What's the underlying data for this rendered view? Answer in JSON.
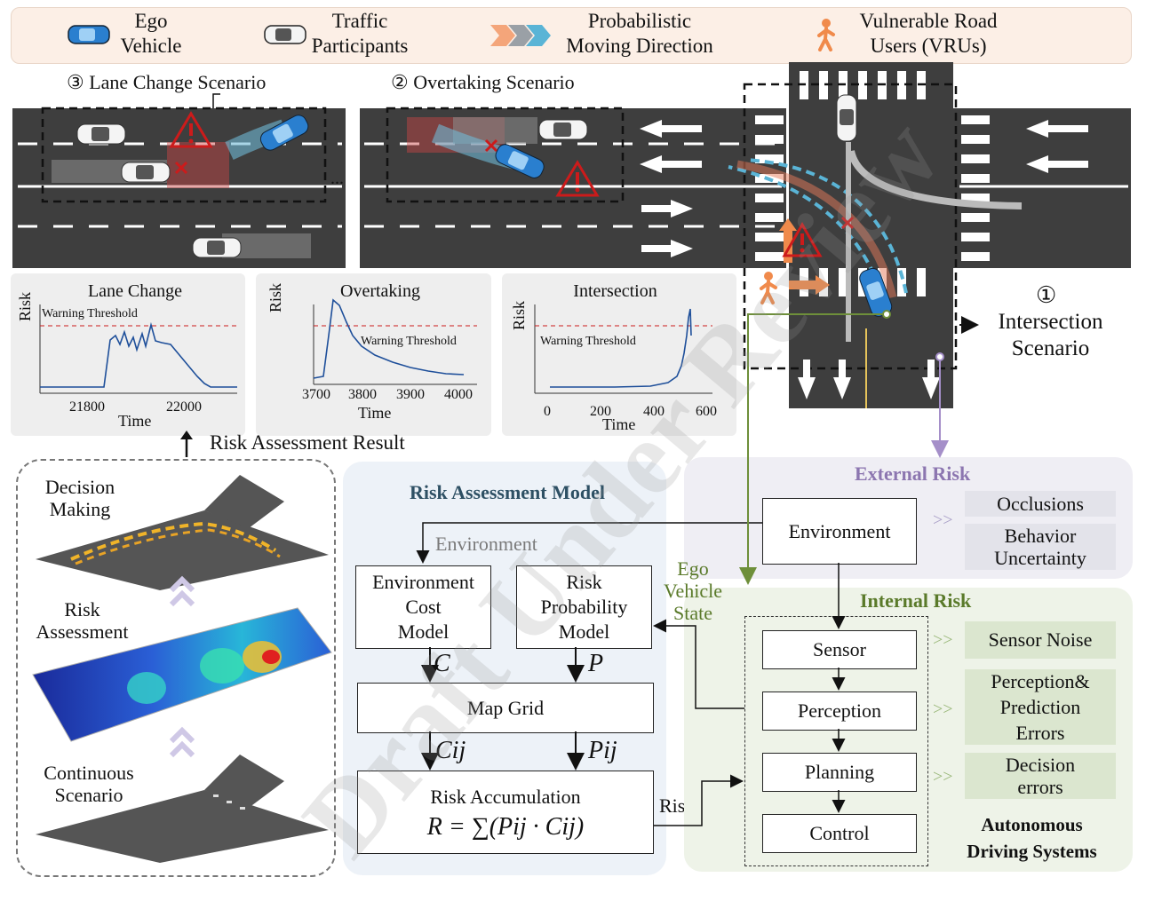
{
  "legend": {
    "ego": "Ego\nVehicle",
    "traffic": "Traffic\nParticipants",
    "direction": "Probabilistic\nMoving Direction",
    "vru": "Vulnerable Road\nUsers (VRUs)"
  },
  "scenarios": {
    "lane_change": "③ Lane Change Scenario",
    "overtaking": "② Overtaking Scenario",
    "intersection_num": "①",
    "intersection": "Intersection\nScenario",
    "dots": "..."
  },
  "plots": {
    "lane_change": {
      "title": "Lane Change",
      "ylabel": "Risk",
      "xlabel": "Time",
      "ticks": [
        "21800",
        "22000"
      ],
      "threshold": "Warning Threshold"
    },
    "overtaking": {
      "title": "Overtaking",
      "ylabel": "Risk",
      "xlabel": "Time",
      "ticks": [
        "3700",
        "3800",
        "3900",
        "4000"
      ],
      "threshold": "Warning Threshold"
    },
    "intersection": {
      "title": "Intersection",
      "ylabel": "Risk",
      "xlabel": "Time",
      "ticks": [
        "0",
        "200",
        "400",
        "600"
      ],
      "threshold": "Warning Threshold"
    }
  },
  "risk_result": "Risk Assessment Result",
  "left_panel": {
    "decision": "Decision\nMaking",
    "risk": "Risk\nAssessment",
    "continuous": "Continuous\nScenario"
  },
  "model": {
    "title": "Risk Assessment Model",
    "environment_label": "Environment",
    "env_cost": "Environment\nCost\nModel",
    "risk_prob": "Risk\nProbability\nModel",
    "c": "C",
    "p": "P",
    "map_grid": "Map Grid",
    "cij": "Cij",
    "pij": "Pij",
    "accum": "Risk Accumulation",
    "formula": "R = ∑(Pij · Cij)",
    "ego_state": "Ego\nVehicle\nState",
    "risk_out": "Risk"
  },
  "external": {
    "title": "External Risk",
    "environment": "Environment",
    "occlusions": "Occlusions",
    "behavior": "Behavior\nUncertainty"
  },
  "internal": {
    "title": "Internal Risk",
    "sensor": "Sensor",
    "perception": "Perception",
    "planning": "Planning",
    "control": "Control",
    "sensor_noise": "Sensor Noise",
    "perception_err": "Perception&\nPrediction\nErrors",
    "decision_err": "Decision\nerrors",
    "ads": "Autonomous\nDriving Systems",
    "gg": ">>"
  },
  "watermark": "Draft Under Review",
  "colors": {
    "ego_blue": "#2a7fcf",
    "road": "#3e3e3e",
    "risk_red": "#cc1b1b",
    "internal_green": "#5a7a2a",
    "external_purple": "#8c76b0"
  }
}
